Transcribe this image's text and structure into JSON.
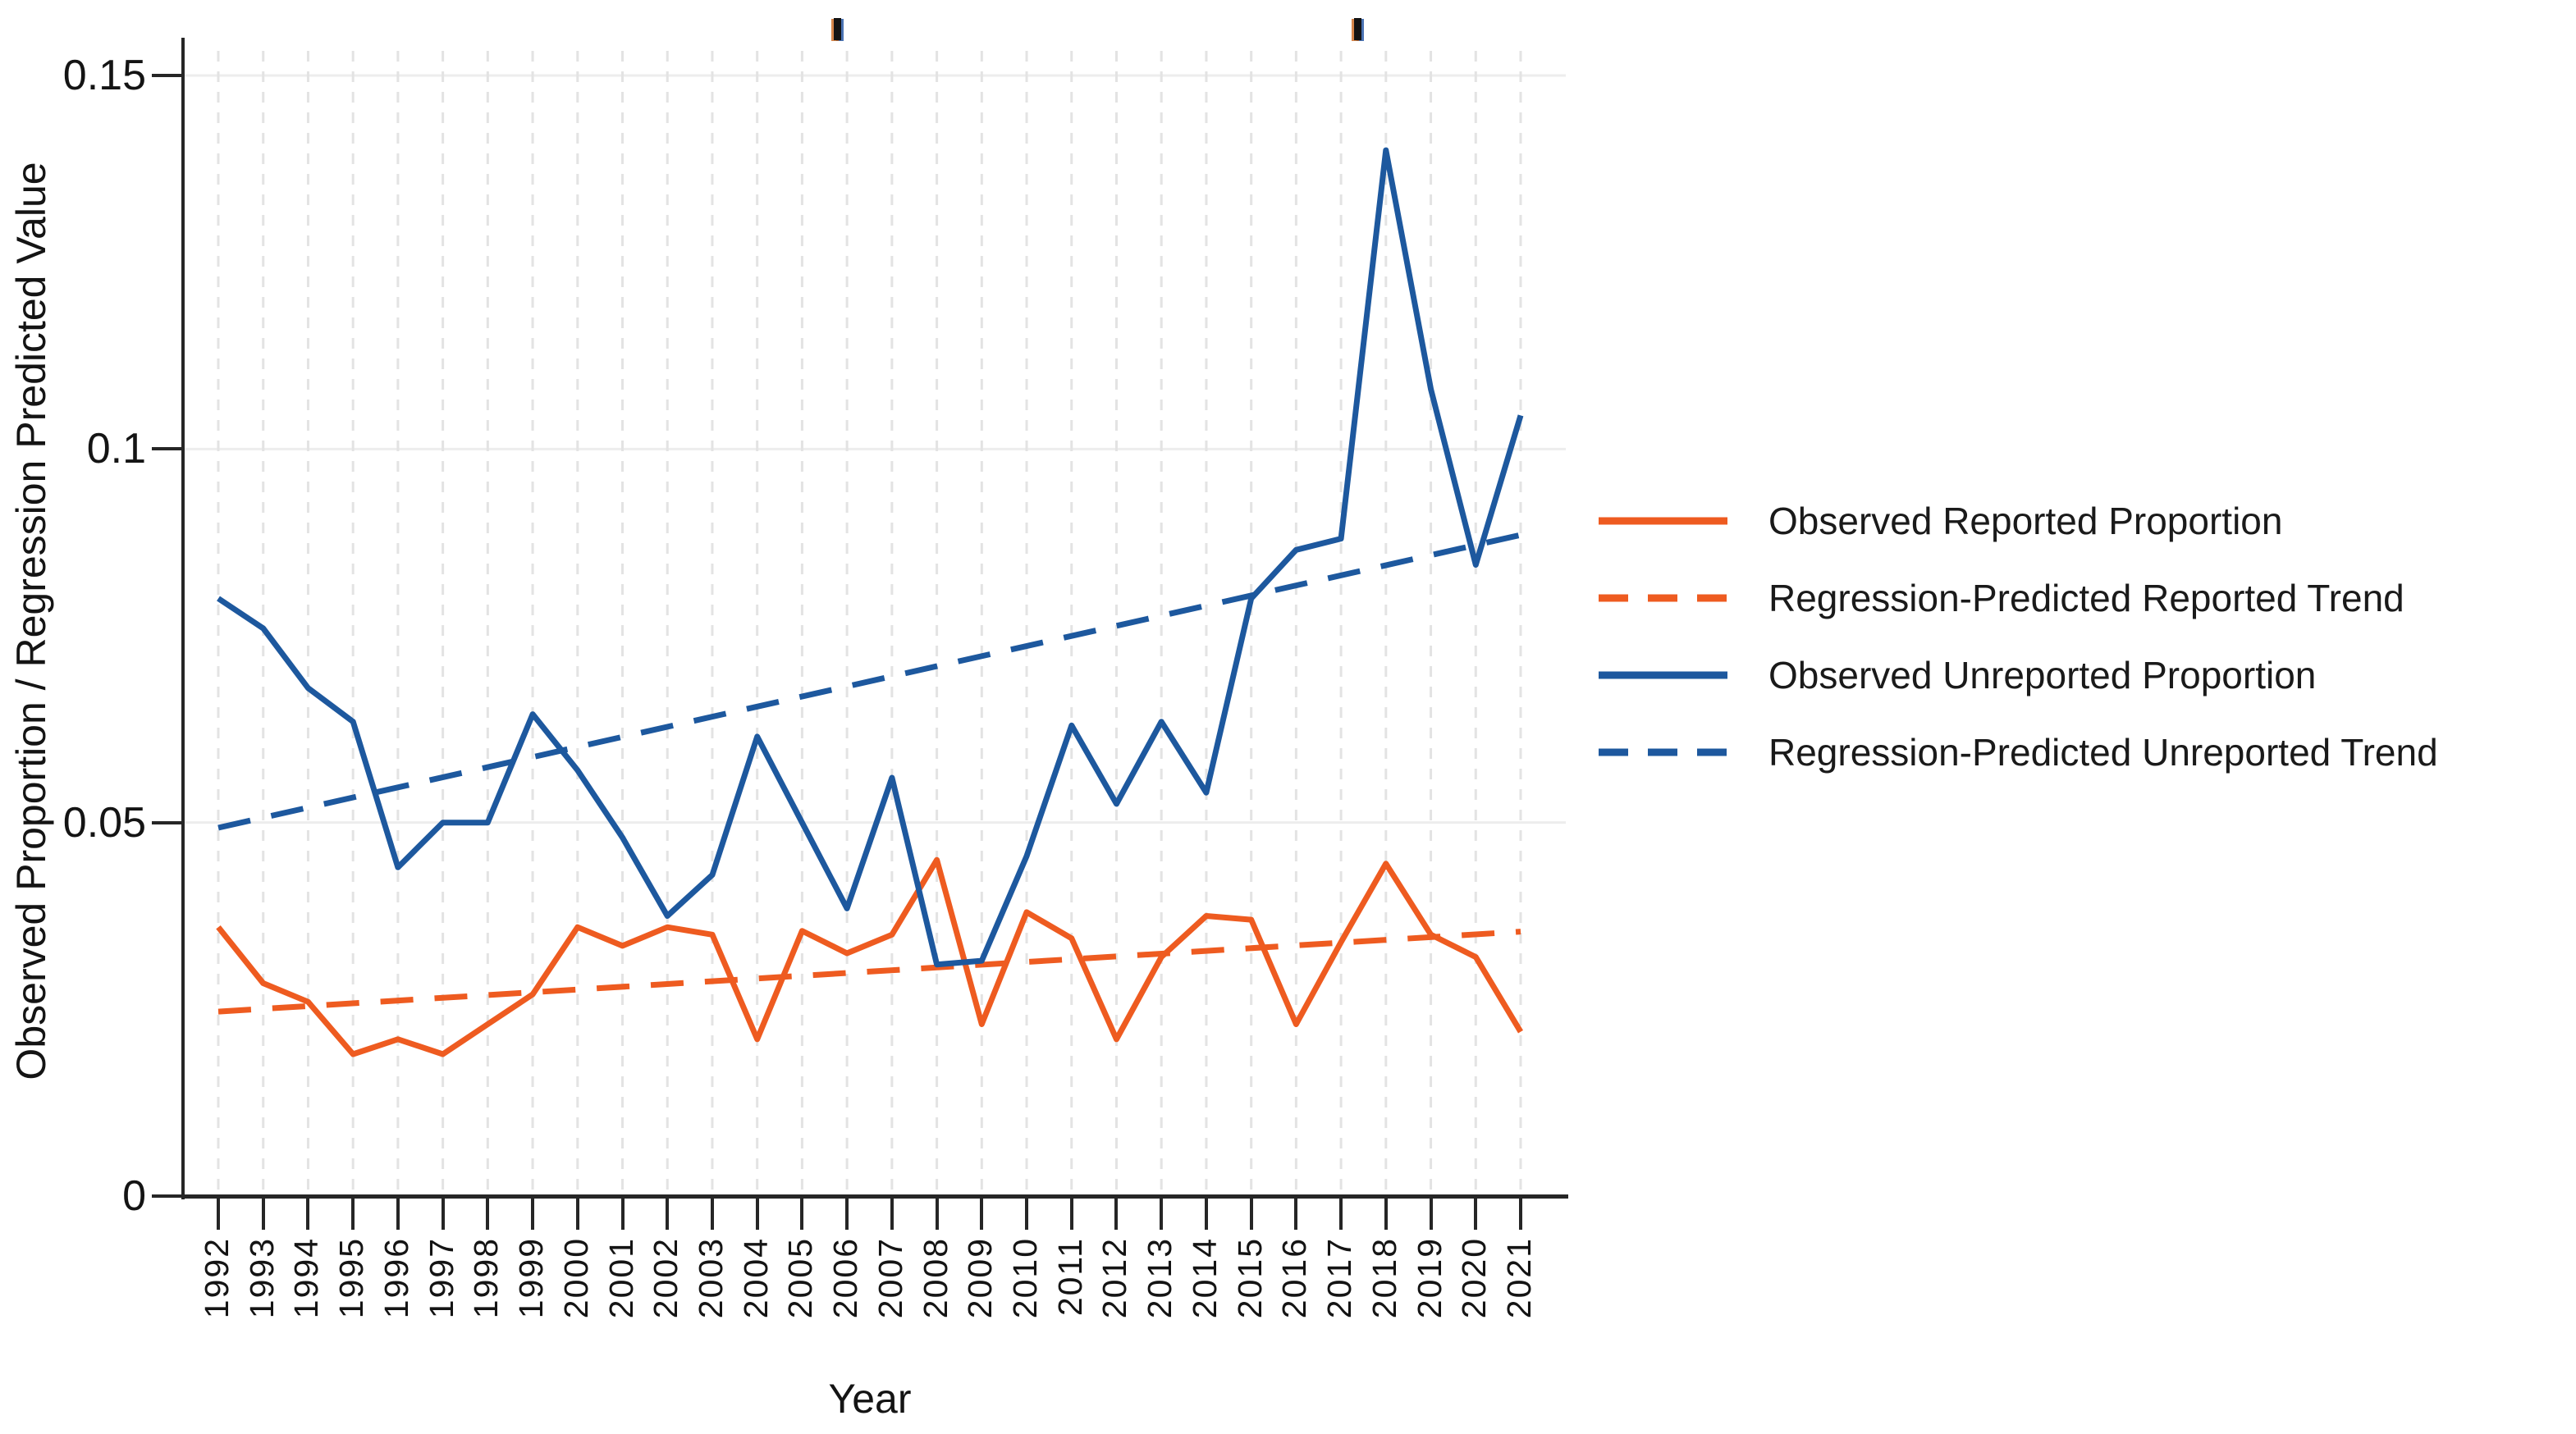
{
  "chart_data": {
    "type": "line",
    "title": "",
    "xlabel": "Year",
    "ylabel": "Observed Proportion / Regression Predicted Value",
    "x": [
      1992,
      1993,
      1994,
      1995,
      1996,
      1997,
      1998,
      1999,
      2000,
      2001,
      2002,
      2003,
      2004,
      2005,
      2006,
      2007,
      2008,
      2009,
      2010,
      2011,
      2012,
      2013,
      2014,
      2015,
      2016,
      2017,
      2018,
      2019,
      2020,
      2021
    ],
    "xlim": [
      1992,
      2021
    ],
    "ylim": [
      0,
      0.155
    ],
    "y_ticks": [
      0,
      0.05,
      0.1,
      0.15
    ],
    "y_tick_labels": [
      "0",
      "0.05",
      "0.1",
      "0.15"
    ],
    "grid": "vertical dashed gridline per year, faint horizontal gridlines at y ticks",
    "legend_position": "right",
    "colors": {
      "reported": "#EE5B20",
      "unreported": "#1D589E",
      "grid_vertical": "#E3E3E3",
      "grid_horizontal": "#EDEDED",
      "axis": "#262626",
      "text": "#141414"
    },
    "series": [
      {
        "name": "Observed Reported Proportion",
        "style": "solid",
        "color": "#EE5B20",
        "values": [
          0.036,
          0.0285,
          0.026,
          0.019,
          0.021,
          0.019,
          0.023,
          0.027,
          0.036,
          0.0335,
          0.036,
          0.035,
          0.021,
          0.0355,
          0.0325,
          0.035,
          0.045,
          0.023,
          0.038,
          0.0345,
          0.021,
          0.032,
          0.0375,
          0.037,
          0.023,
          0.034,
          0.0445,
          0.035,
          0.032,
          0.022
        ]
      },
      {
        "name": "Regression-Predicted Reported Trend",
        "style": "dashed",
        "color": "#EE5B20",
        "x": [
          1992,
          2021
        ],
        "values": [
          0.0247,
          0.0354
        ]
      },
      {
        "name": "Observed Unreported Proportion",
        "style": "solid",
        "color": "#1D589E",
        "values": [
          0.08,
          0.076,
          0.068,
          0.0635,
          0.044,
          0.05,
          0.05,
          0.0645,
          0.057,
          0.048,
          0.0375,
          0.043,
          0.0615,
          0.05,
          0.0385,
          0.056,
          0.031,
          0.0315,
          0.0455,
          0.063,
          0.0525,
          0.0635,
          0.054,
          0.08,
          0.0865,
          0.088,
          0.14,
          0.108,
          0.0845,
          0.1045
        ]
      },
      {
        "name": "Regression-Predicted Unreported Trend",
        "style": "dashed",
        "color": "#1D589E",
        "x": [
          1992,
          2021
        ],
        "values": [
          0.0493,
          0.0885
        ]
      }
    ]
  }
}
